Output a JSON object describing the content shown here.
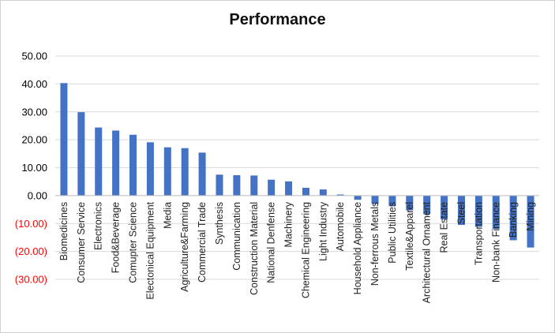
{
  "chart_data": {
    "type": "bar",
    "title": "Performance",
    "xlabel": "",
    "ylabel": "",
    "ylim": [
      -30,
      50
    ],
    "ytick_values": [
      50,
      40,
      30,
      20,
      10,
      0,
      -10,
      -20,
      -30
    ],
    "ytick_labels": [
      "50.00",
      "40.00",
      "30.00",
      "20.00",
      "10.00",
      "0.00",
      "(10.00)",
      "(20.00)",
      "(30.00)"
    ],
    "grid": true,
    "legend": "none",
    "colors": {
      "bar": "#4472C4",
      "negative_tick": "#FF0000",
      "positive_tick": "#000000",
      "grid": "#D9D9D9"
    },
    "categories": [
      "Biomedicines",
      "Consumer Service",
      "Electronics",
      "Food&Beverage",
      "Comupter Science",
      "Electonical Equipment",
      "Media",
      "Agriculture&Farming",
      "Commercial Trade",
      "Synthesis",
      "Communication",
      "Construction Material",
      "National Denfense",
      "Machinery",
      "Chemical Engineering",
      "Light Industry",
      "Automobile",
      "Household Appliance",
      "Non-ferrous Metals",
      "Public Utilities",
      "Textile&Apparel",
      "Architectural Ornament",
      "Real Estate",
      "Steel",
      "Transportation",
      "Non-bank Finance",
      "Banking",
      "Mining"
    ],
    "values": [
      40.3,
      29.9,
      24.4,
      23.3,
      21.8,
      19.1,
      17.3,
      17.0,
      15.4,
      7.5,
      7.3,
      7.2,
      5.7,
      5.1,
      2.8,
      2.2,
      0.4,
      -1.5,
      -3.0,
      -3.8,
      -5.3,
      -6.7,
      -8.5,
      -10.5,
      -11.2,
      -12.0,
      -16.0,
      -18.6
    ]
  }
}
